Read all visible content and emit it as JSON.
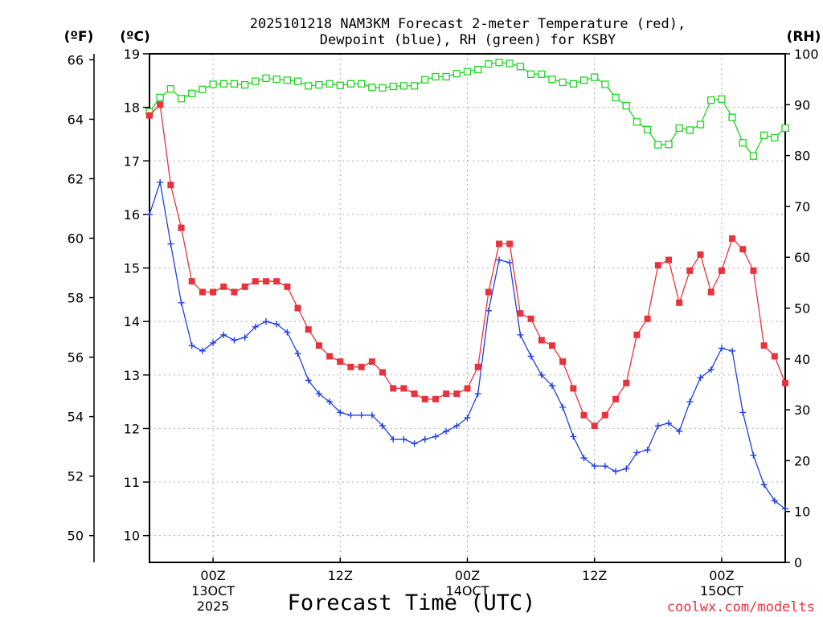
{
  "chart_data": {
    "type": "line",
    "title_line1": "2025101218 NAM3KM Forecast 2-meter Temperature (red),",
    "title_line2": "Dewpoint (blue), RH (green) for KSBY",
    "xlabel": "Forecast Time (UTC)",
    "credit": "coolwx.com/modelts",
    "units": {
      "fahrenheit": "(ºF)",
      "celsius": "(ºC)",
      "rh": "(RH)"
    },
    "colors": {
      "temperature": "#e8323c",
      "dewpoint": "#2040e0",
      "rh": "#22d422",
      "grid": "#a8a8a8"
    },
    "x_hours": [
      0,
      1,
      2,
      3,
      4,
      5,
      6,
      7,
      8,
      9,
      10,
      11,
      12,
      13,
      14,
      15,
      16,
      17,
      18,
      19,
      20,
      21,
      22,
      23,
      24,
      25,
      26,
      27,
      28,
      29,
      30,
      31,
      32,
      33,
      34,
      35,
      36,
      37,
      38,
      39,
      40,
      41,
      42,
      43,
      44,
      45,
      46,
      47,
      48,
      49,
      50,
      51,
      52,
      53,
      54,
      55,
      56,
      57,
      58,
      59,
      60
    ],
    "xlim": [
      0,
      60
    ],
    "x_ticks": [
      {
        "hour": 6,
        "label": "00Z",
        "sub1": "13OCT",
        "sub2": "2025"
      },
      {
        "hour": 18,
        "label": "12Z",
        "sub1": "",
        "sub2": ""
      },
      {
        "hour": 30,
        "label": "00Z",
        "sub1": "14OCT",
        "sub2": ""
      },
      {
        "hour": 42,
        "label": "12Z",
        "sub1": "",
        "sub2": ""
      },
      {
        "hour": 54,
        "label": "00Z",
        "sub1": "15OCT",
        "sub2": ""
      }
    ],
    "ylim_celsius": [
      9.5,
      19.0
    ],
    "celsius_ticks": [
      "10",
      "11",
      "12",
      "13",
      "14",
      "15",
      "16",
      "17",
      "18",
      "19"
    ],
    "fahrenheit_ticks": [
      "50",
      "52",
      "54",
      "56",
      "58",
      "60",
      "62",
      "64",
      "66"
    ],
    "rh_ticks": [
      "0",
      "10",
      "20",
      "30",
      "40",
      "50",
      "60",
      "70",
      "80",
      "90",
      "100"
    ],
    "series": [
      {
        "name": "Temperature",
        "unit": "°C",
        "values": [
          17.85,
          18.05,
          16.55,
          15.75,
          14.75,
          14.55,
          14.55,
          14.65,
          14.55,
          14.65,
          14.75,
          14.75,
          14.75,
          14.65,
          14.25,
          13.85,
          13.55,
          13.35,
          13.25,
          13.15,
          13.15,
          13.25,
          13.05,
          12.75,
          12.75,
          12.65,
          12.55,
          12.55,
          12.65,
          12.65,
          12.75,
          13.15,
          14.55,
          15.45,
          15.45,
          14.15,
          14.05,
          13.65,
          13.55,
          13.25,
          12.75,
          12.25,
          12.05,
          12.25,
          12.55,
          12.85,
          13.75,
          14.05,
          15.05,
          15.15,
          14.35,
          14.95,
          15.25,
          14.55,
          14.95,
          15.55,
          15.35,
          14.95,
          13.55,
          13.35,
          12.85
        ]
      },
      {
        "name": "Dewpoint",
        "unit": "°C",
        "values": [
          16.0,
          16.6,
          15.45,
          14.35,
          13.55,
          13.45,
          13.6,
          13.75,
          13.65,
          13.7,
          13.9,
          14.0,
          13.95,
          13.8,
          13.4,
          12.9,
          12.65,
          12.5,
          12.3,
          12.25,
          12.25,
          12.25,
          12.05,
          11.8,
          11.8,
          11.72,
          11.8,
          11.85,
          11.95,
          12.05,
          12.2,
          12.65,
          14.2,
          15.15,
          15.1,
          13.75,
          13.35,
          13.0,
          12.8,
          12.4,
          11.85,
          11.45,
          11.3,
          11.3,
          11.2,
          11.25,
          11.55,
          11.6,
          12.05,
          12.1,
          11.95,
          12.5,
          12.95,
          13.1,
          13.5,
          13.45,
          12.3,
          11.5,
          10.95,
          10.65,
          10.5
        ]
      },
      {
        "name": "RH",
        "unit": "%",
        "values": [
          88.6,
          91.4,
          93.1,
          91.2,
          92.2,
          93.0,
          94.0,
          94.1,
          94.1,
          93.9,
          94.6,
          95.2,
          95.0,
          94.8,
          94.6,
          93.7,
          93.9,
          94.1,
          93.8,
          94.1,
          94.1,
          93.4,
          93.3,
          93.6,
          93.7,
          93.7,
          94.9,
          95.5,
          95.5,
          96.1,
          96.5,
          96.9,
          98.0,
          98.3,
          98.1,
          97.5,
          96.0,
          96.0,
          95.0,
          94.4,
          94.1,
          94.8,
          95.4,
          94.0,
          91.4,
          89.8,
          86.6,
          85.1,
          82.1,
          82.2,
          85.4,
          85.0,
          86.1,
          90.9,
          91.1,
          87.5,
          82.5,
          79.9,
          84.0,
          83.5,
          85.4
        ]
      }
    ]
  }
}
